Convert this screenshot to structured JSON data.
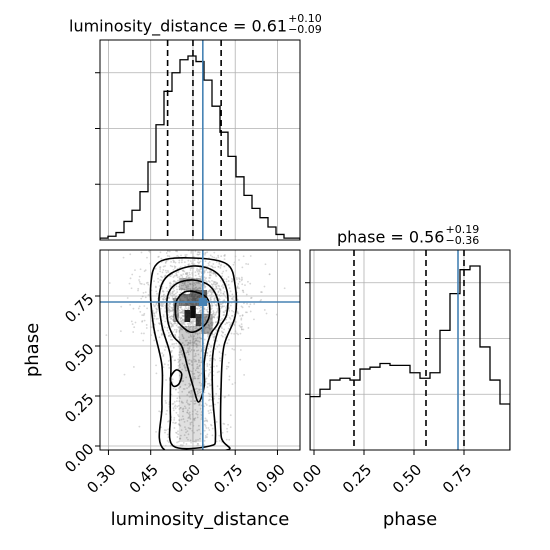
{
  "chart_data": [
    {
      "panel": "luminosity_distance-marginal",
      "type": "histogram",
      "title": {
        "param": "luminosity_distance",
        "median": "0.61",
        "plus": "+0.10",
        "minus": "−0.09"
      },
      "x_range": [
        0.27,
        0.98
      ],
      "bins": 25,
      "counts": [
        0.01,
        0.02,
        0.04,
        0.1,
        0.16,
        0.26,
        0.42,
        0.62,
        0.8,
        0.9,
        0.97,
        0.99,
        0.96,
        0.86,
        0.72,
        0.58,
        0.45,
        0.34,
        0.24,
        0.17,
        0.12,
        0.07,
        0.03,
        0.01,
        0.01
      ],
      "quantile_lines": [
        0.51,
        0.6,
        0.7
      ],
      "truth": 0.635,
      "colors": {
        "hist": "#000000",
        "truth": "#4682b4",
        "grid": "#b0b0b0"
      }
    },
    {
      "panel": "phase-marginal",
      "type": "histogram",
      "title": {
        "param": "phase",
        "median": "0.56",
        "plus": "+0.19",
        "minus": "−0.36"
      },
      "x_range": [
        -0.02,
        0.98
      ],
      "bins": 20,
      "counts": [
        0.29,
        0.33,
        0.38,
        0.39,
        0.38,
        0.44,
        0.45,
        0.47,
        0.46,
        0.46,
        0.42,
        0.39,
        0.42,
        0.65,
        0.85,
        0.98,
        1.0,
        0.56,
        0.38,
        0.25
      ],
      "quantile_lines": [
        0.2,
        0.56,
        0.75
      ],
      "truth": 0.72,
      "colors": {
        "hist": "#000000",
        "truth": "#4682b4",
        "grid": "#b0b0b0"
      }
    },
    {
      "panel": "joint",
      "type": "scatter",
      "x_range": [
        0.27,
        0.98
      ],
      "y_range": [
        -0.02,
        0.98
      ],
      "x_ticks": [
        "0.30",
        "0.45",
        "0.60",
        "0.75",
        "0.90"
      ],
      "x_tick_values": [
        0.3,
        0.45,
        0.6,
        0.75,
        0.9
      ],
      "y_ticks": [
        "0.00",
        "0.25",
        "0.50",
        "0.75"
      ],
      "y_tick_values": [
        0,
        0.25,
        0.5,
        0.75
      ],
      "xlabel": "luminosity_distance",
      "ylabel": "phase",
      "truth": {
        "x": 0.635,
        "y": 0.72
      },
      "density_blocks": [
        {
          "x0": 0.57,
          "x1": 0.59,
          "y0": 0.62,
          "y1": 0.68,
          "shade": 0.85
        },
        {
          "x0": 0.59,
          "x1": 0.61,
          "y0": 0.64,
          "y1": 0.7,
          "shade": 0.95
        },
        {
          "x0": 0.61,
          "x1": 0.63,
          "y0": 0.6,
          "y1": 0.66,
          "shade": 0.75
        },
        {
          "x0": 0.55,
          "x1": 0.59,
          "y0": 0.7,
          "y1": 0.76,
          "shade": 0.5
        },
        {
          "x0": 0.59,
          "x1": 0.65,
          "y0": 0.7,
          "y1": 0.78,
          "shade": 0.55
        },
        {
          "x0": 0.53,
          "x1": 0.55,
          "y0": 0.62,
          "y1": 0.74,
          "shade": 0.35
        },
        {
          "x0": 0.63,
          "x1": 0.67,
          "y0": 0.56,
          "y1": 0.66,
          "shade": 0.35
        },
        {
          "x0": 0.55,
          "x1": 0.63,
          "y0": 0.78,
          "y1": 0.84,
          "shade": 0.25
        },
        {
          "x0": 0.55,
          "x1": 0.63,
          "y0": 0.5,
          "y1": 0.6,
          "shade": 0.2
        },
        {
          "x0": 0.55,
          "x1": 0.63,
          "y0": 0.3,
          "y1": 0.5,
          "shade": 0.15
        },
        {
          "x0": 0.55,
          "x1": 0.63,
          "y0": 0.02,
          "y1": 0.3,
          "shade": 0.12
        }
      ],
      "contours": [
        [
          [
            0.56,
            0.6
          ],
          [
            0.54,
            0.64
          ],
          [
            0.54,
            0.72
          ],
          [
            0.57,
            0.77
          ],
          [
            0.61,
            0.77
          ],
          [
            0.65,
            0.74
          ],
          [
            0.66,
            0.68
          ],
          [
            0.65,
            0.62
          ],
          [
            0.62,
            0.58
          ],
          [
            0.59,
            0.57
          ]
        ],
        [
          [
            0.53,
            0.55
          ],
          [
            0.51,
            0.63
          ],
          [
            0.51,
            0.75
          ],
          [
            0.54,
            0.81
          ],
          [
            0.6,
            0.83
          ],
          [
            0.66,
            0.8
          ],
          [
            0.69,
            0.72
          ],
          [
            0.69,
            0.62
          ],
          [
            0.66,
            0.55
          ],
          [
            0.64,
            0.42
          ],
          [
            0.64,
            0.3
          ],
          [
            0.62,
            0.22
          ],
          [
            0.6,
            0.3
          ],
          [
            0.58,
            0.4
          ],
          [
            0.56,
            0.5
          ]
        ],
        [
          [
            0.52,
            0.45
          ],
          [
            0.49,
            0.6
          ],
          [
            0.48,
            0.75
          ],
          [
            0.51,
            0.85
          ],
          [
            0.6,
            0.9
          ],
          [
            0.68,
            0.87
          ],
          [
            0.72,
            0.78
          ],
          [
            0.72,
            0.66
          ],
          [
            0.69,
            0.58
          ],
          [
            0.67,
            0.45
          ],
          [
            0.67,
            0.25
          ],
          [
            0.68,
            0.05
          ],
          [
            0.66,
            0.0
          ],
          [
            0.53,
            0.0
          ],
          [
            0.52,
            0.15
          ],
          [
            0.52,
            0.3
          ]
        ],
        [
          [
            0.49,
            0.4
          ],
          [
            0.46,
            0.6
          ],
          [
            0.45,
            0.8
          ],
          [
            0.48,
            0.92
          ],
          [
            0.6,
            0.94
          ],
          [
            0.72,
            0.91
          ],
          [
            0.75,
            0.8
          ],
          [
            0.75,
            0.65
          ],
          [
            0.71,
            0.5
          ],
          [
            0.7,
            0.3
          ],
          [
            0.7,
            0.05
          ],
          [
            0.72,
            -0.02
          ],
          [
            0.5,
            -0.02
          ],
          [
            0.49,
            0.2
          ]
        ]
      ],
      "small_contour": [
        [
          0.53,
          0.3
        ],
        [
          0.52,
          0.34
        ],
        [
          0.54,
          0.38
        ],
        [
          0.56,
          0.36
        ],
        [
          0.55,
          0.31
        ]
      ],
      "colors": {
        "points": "#b4b4b4",
        "density": "#000000",
        "contour": "#000000",
        "truth": "#4682b4",
        "grid": "#b0b0b0"
      }
    }
  ]
}
